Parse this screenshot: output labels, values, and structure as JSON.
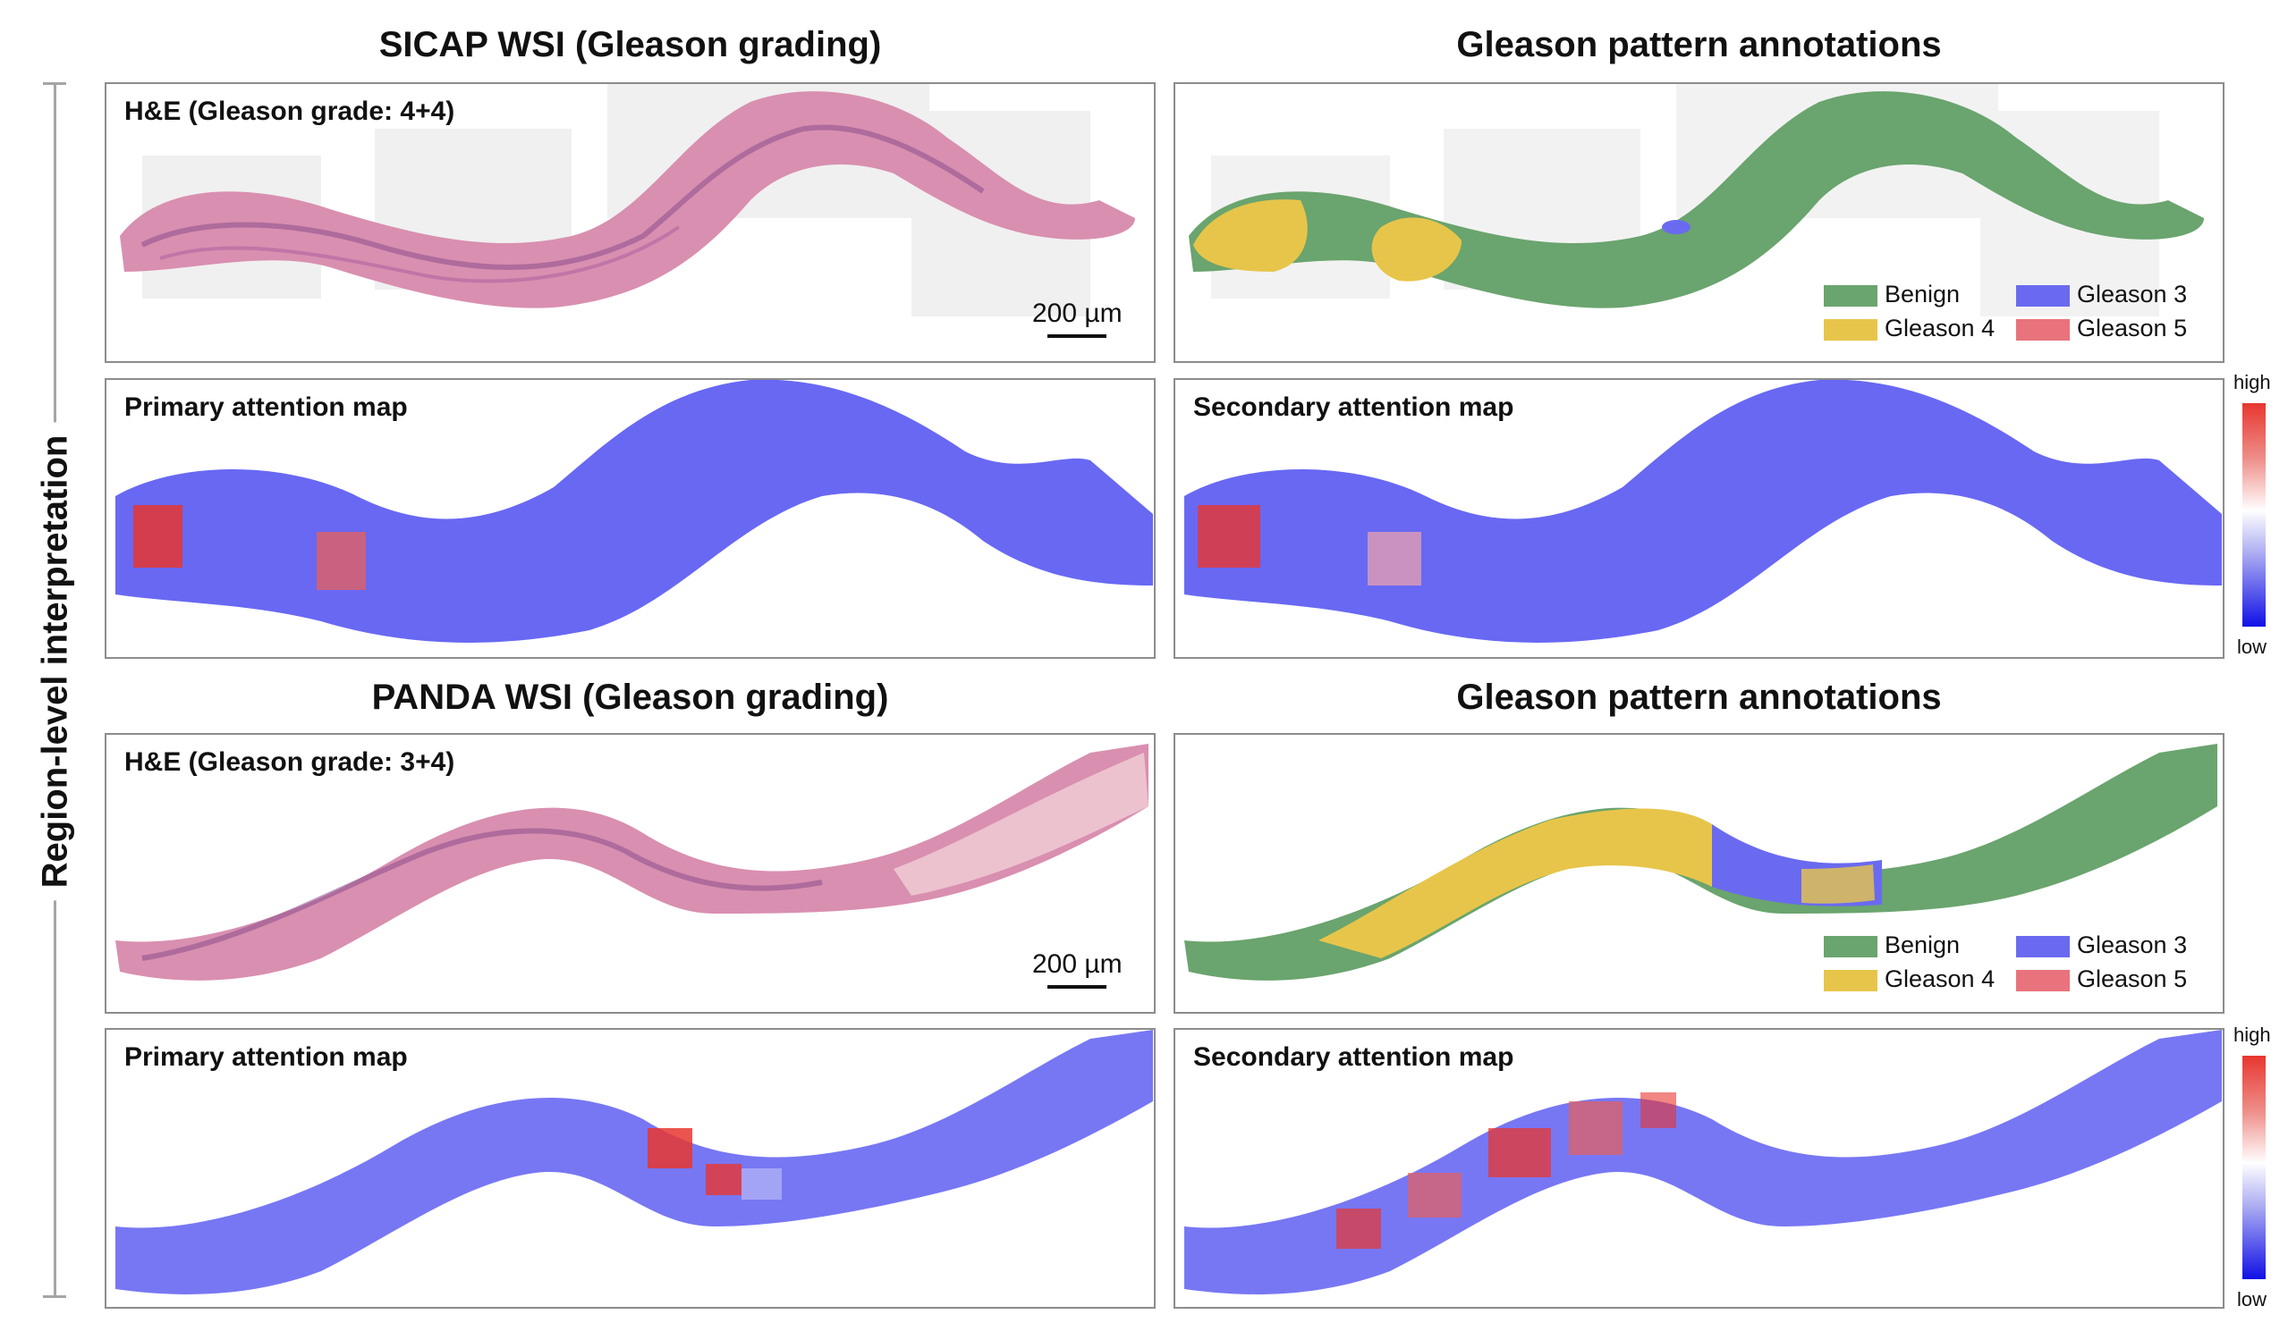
{
  "side_label": "Region-level interpretation",
  "sicap": {
    "left_title": "SICAP WSI (Gleason grading)",
    "right_title": "Gleason pattern annotations",
    "he_label": "H&E (Gleason grade: 4+4)",
    "scale": "200 µm",
    "primary_label": "Primary attention map",
    "secondary_label": "Secondary attention map"
  },
  "panda": {
    "left_title": "PANDA WSI (Gleason grading)",
    "right_title": "Gleason pattern annotations",
    "he_label": "H&E (Gleason grade: 3+4)",
    "scale": "200 µm",
    "primary_label": "Primary attention map",
    "secondary_label": "Secondary attention map"
  },
  "legend": {
    "benign": "Benign",
    "gleason3": "Gleason 3",
    "gleason4": "Gleason 4",
    "gleason5": "Gleason 5"
  },
  "legend_colors": {
    "benign": "#6aa46e",
    "gleason3": "#6a6af0",
    "gleason4": "#e7c54a",
    "gleason5": "#e8737c"
  },
  "colorbar": {
    "high": "high",
    "low": "low"
  },
  "colors": {
    "tissue_he": "#d98fb0",
    "tissue_he_dark": "#8a4f8c",
    "attention_low": "#3d3df0",
    "attention_high": "#e8362f"
  }
}
